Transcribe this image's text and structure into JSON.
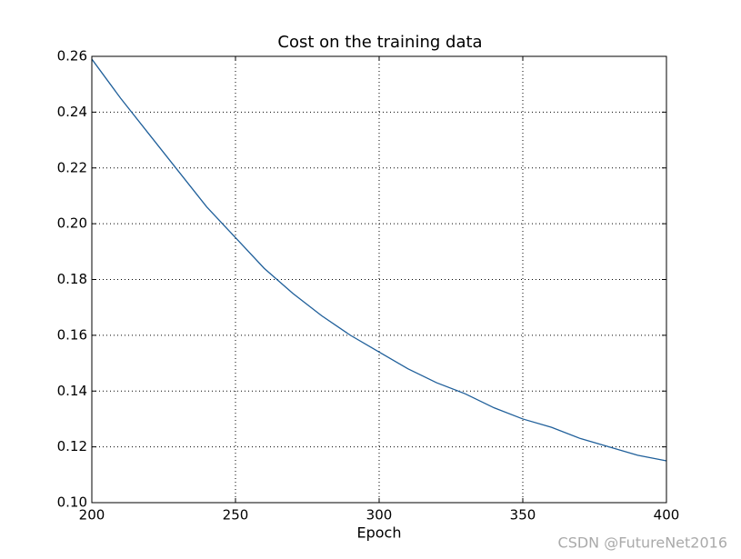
{
  "chart_data": {
    "type": "line",
    "title": "Cost on the training data",
    "xlabel": "Epoch",
    "x": [
      200,
      210,
      220,
      230,
      240,
      250,
      260,
      270,
      280,
      290,
      300,
      310,
      320,
      330,
      340,
      350,
      360,
      370,
      380,
      390,
      400
    ],
    "series": [
      {
        "color": "#1f5f9a",
        "values": [
          0.259,
          0.245,
          0.232,
          0.219,
          0.206,
          0.195,
          0.184,
          0.175,
          0.167,
          0.16,
          0.154,
          0.148,
          0.143,
          0.139,
          0.134,
          0.13,
          0.127,
          0.123,
          0.12,
          0.117,
          0.115
        ]
      }
    ],
    "xlim": [
      200,
      400
    ],
    "ylim": [
      0.1,
      0.26
    ],
    "xticks": [
      200,
      250,
      300,
      350,
      400
    ],
    "yticks": [
      {
        "value": 0.1,
        "label": "0.10"
      },
      0.12,
      0.14,
      0.16,
      0.18,
      {
        "value": 0.2,
        "label": "0.20"
      },
      0.22,
      0.24,
      0.26
    ],
    "grid": true,
    "watermark": "CSDN @FutureNet2016"
  }
}
